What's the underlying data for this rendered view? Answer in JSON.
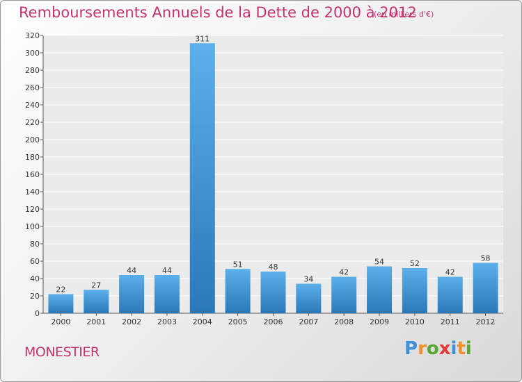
{
  "title": "Remboursements Annuels de la Dette de 2000 à 2012",
  "subtitle": "(en milliers d'€)",
  "place": "MONESTIER",
  "logo": {
    "text": "Proxiti",
    "colors": [
      "#3d8fd6",
      "#f0902a",
      "#5aa832",
      "#e23a3a",
      "#3d8fd6",
      "#f0902a",
      "#5aa832"
    ]
  },
  "colors": {
    "accent": "#c4336e",
    "bar_top": "#5cb0ea",
    "bar_bottom": "#2a78b8"
  },
  "chart_data": {
    "type": "bar",
    "title": "Remboursements Annuels de la Dette de 2000 à 2012",
    "subtitle": "(en milliers d'€)",
    "xlabel": "",
    "ylabel": "",
    "categories": [
      "2000",
      "2001",
      "2002",
      "2003",
      "2004",
      "2005",
      "2006",
      "2007",
      "2008",
      "2009",
      "2010",
      "2011",
      "2012"
    ],
    "values": [
      22,
      27,
      44,
      44,
      311,
      51,
      48,
      34,
      42,
      54,
      52,
      42,
      58
    ],
    "ylim": [
      0,
      320
    ],
    "yticks": [
      0,
      20,
      40,
      60,
      80,
      100,
      120,
      140,
      160,
      180,
      200,
      220,
      240,
      260,
      280,
      300,
      320
    ],
    "grid": true
  }
}
